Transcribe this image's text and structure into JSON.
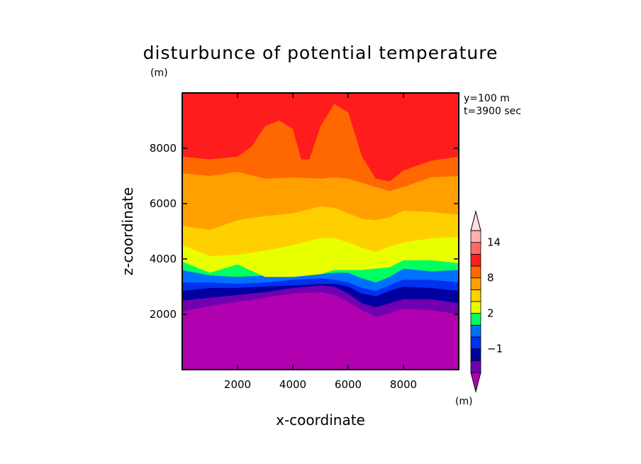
{
  "chart_data": {
    "type": "heatmap",
    "title": "disturbunce of potential temperature",
    "title_unit": "(m)",
    "xlabel": "x-coordinate",
    "ylabel": "z-coordinate",
    "xlim": [
      0,
      10000
    ],
    "ylim": [
      0,
      10000
    ],
    "xticks": [
      2000,
      4000,
      6000,
      8000
    ],
    "yticks": [
      2000,
      4000,
      6000,
      8000
    ],
    "annotations": [
      "y=100 m",
      "t=3900 sec"
    ],
    "colorbar": {
      "unit": "(m)",
      "tick_labels": [
        {
          "label": "14",
          "value": 14
        },
        {
          "label": "8",
          "value": 8
        },
        {
          "label": "2",
          "value": 2
        },
        {
          "label": "−1",
          "value": -1
        }
      ],
      "levels": [
        {
          "color": "#b000b0",
          "min": null,
          "max": -2
        },
        {
          "color": "#7000b0",
          "min": -2,
          "max": -1.5
        },
        {
          "color": "#0000a0",
          "min": -1.5,
          "max": -1
        },
        {
          "color": "#0030f0",
          "min": -1,
          "max": -0.5
        },
        {
          "color": "#0070ff",
          "min": -0.5,
          "max": 1
        },
        {
          "color": "#00ff60",
          "min": 1,
          "max": 2
        },
        {
          "color": "#e8ff00",
          "min": 2,
          "max": 4
        },
        {
          "color": "#ffd000",
          "min": 4,
          "max": 6
        },
        {
          "color": "#ffa000",
          "min": 6,
          "max": 8
        },
        {
          "color": "#ff6800",
          "min": 8,
          "max": 10
        },
        {
          "color": "#ff1c1c",
          "min": 10,
          "max": 12
        },
        {
          "color": "#ff6868",
          "min": 12,
          "max": 14
        },
        {
          "color": "#ffb0b0",
          "min": 14,
          "max": 16
        },
        {
          "color": "#ffe0e0",
          "min": 16,
          "max": null
        }
      ]
    },
    "contour_boundaries": [
      {
        "above_color": "#7000b0",
        "x": [
          0,
          1000,
          2000,
          3000,
          4000,
          5000,
          5500,
          6000,
          6500,
          7000,
          7500,
          8000,
          9000,
          10000
        ],
        "z": [
          2100,
          2300,
          2450,
          2600,
          2750,
          2800,
          2700,
          2450,
          2150,
          1900,
          2050,
          2200,
          2150,
          2000
        ]
      },
      {
        "above_color": "#0000a0",
        "x": [
          0,
          1000,
          2000,
          3000,
          4000,
          5000,
          5500,
          6000,
          6500,
          7000,
          7500,
          8000,
          9000,
          10000
        ],
        "z": [
          2500,
          2600,
          2700,
          2800,
          2950,
          3050,
          3000,
          2750,
          2400,
          2250,
          2400,
          2550,
          2550,
          2400
        ]
      },
      {
        "above_color": "#0030f0",
        "x": [
          0,
          1000,
          2000,
          3000,
          4000,
          5000,
          5500,
          6000,
          6500,
          7000,
          7500,
          8000,
          9000,
          10000
        ],
        "z": [
          2850,
          2950,
          2950,
          3000,
          3050,
          3100,
          3100,
          3000,
          2750,
          2650,
          2850,
          3000,
          2950,
          2850
        ]
      },
      {
        "above_color": "#0070ff",
        "x": [
          0,
          1000,
          2000,
          3000,
          4000,
          5000,
          5500,
          6000,
          6500,
          7000,
          7500,
          8000,
          9000,
          10000
        ],
        "z": [
          3150,
          3150,
          3100,
          3150,
          3250,
          3300,
          3250,
          3150,
          2950,
          2850,
          3050,
          3250,
          3250,
          3150
        ]
      },
      {
        "above_color": "#00ff60",
        "x": [
          0,
          1000,
          2000,
          3000,
          4000,
          5000,
          5500,
          6000,
          6500,
          7000,
          7500,
          8000,
          9000,
          10000
        ],
        "z": [
          3600,
          3400,
          3350,
          3400,
          3400,
          3450,
          3500,
          3500,
          3300,
          3150,
          3350,
          3650,
          3550,
          3600
        ]
      },
      {
        "above_color": "#e8ff00",
        "x": [
          0,
          1000,
          2000,
          3000,
          4000,
          5000,
          5500,
          6000,
          6500,
          7000,
          7500,
          8000,
          9000,
          10000
        ],
        "z": [
          3900,
          3500,
          3800,
          3350,
          3350,
          3450,
          3600,
          3600,
          3600,
          3650,
          3700,
          3950,
          3950,
          3850
        ]
      },
      {
        "above_color": "#ffd000",
        "x": [
          0,
          1000,
          2000,
          3000,
          4000,
          5000,
          5500,
          6000,
          6500,
          7000,
          7500,
          8000,
          9000,
          10000
        ],
        "z": [
          4500,
          4100,
          4150,
          4300,
          4500,
          4750,
          4750,
          4600,
          4400,
          4250,
          4450,
          4600,
          4750,
          4800
        ]
      },
      {
        "above_color": "#ffa000",
        "x": [
          0,
          1000,
          2000,
          3000,
          4000,
          5000,
          5500,
          6000,
          6500,
          7000,
          7500,
          8000,
          9000,
          10000
        ],
        "z": [
          5200,
          5050,
          5400,
          5550,
          5650,
          5900,
          5850,
          5650,
          5450,
          5400,
          5500,
          5750,
          5700,
          5600
        ]
      },
      {
        "above_color": "#ff6800",
        "x": [
          0,
          1000,
          2000,
          3000,
          4000,
          5000,
          5500,
          6000,
          6500,
          7000,
          7500,
          8000,
          9000,
          10000
        ],
        "z": [
          7100,
          7000,
          7150,
          6900,
          6950,
          6900,
          6950,
          6900,
          6750,
          6600,
          6450,
          6600,
          6950,
          7000
        ]
      },
      {
        "above_color": "#ff1c1c",
        "x": [
          0,
          1000,
          2000,
          2500,
          3000,
          3500,
          4000,
          4300,
          4600,
          5000,
          5500,
          6000,
          6500,
          7000,
          7500,
          8000,
          9000,
          10000
        ],
        "z": [
          7700,
          7600,
          7700,
          8050,
          8800,
          9000,
          8700,
          7600,
          7600,
          8800,
          9600,
          9300,
          7700,
          6900,
          6800,
          7200,
          7550,
          7700
        ]
      }
    ]
  }
}
